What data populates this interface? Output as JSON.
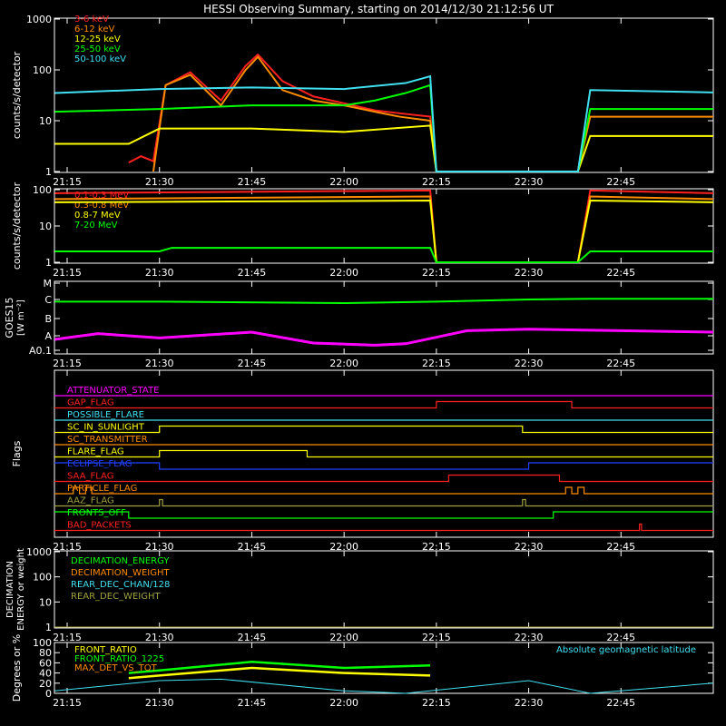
{
  "title": "HESSI Observing Summary, starting on 2014/12/30 21:12:56 UT",
  "time_ticks": [
    "21:15",
    "21:30",
    "21:45",
    "22:00",
    "22:15",
    "22:30",
    "22:45"
  ],
  "colors": {
    "red": "#ff2020",
    "orange": "#ff8c00",
    "yellow": "#ffff00",
    "green": "#00ff00",
    "cyan": "#40e0f0",
    "magenta": "#ff00ff",
    "blue": "#2040ff",
    "olive": "#a0a040"
  },
  "chart_data": [
    {
      "type": "line",
      "ylabel": "counts/s/detector",
      "yscale": "log",
      "ylim": [
        1,
        1000
      ],
      "yticks": [
        "1",
        "10",
        "100",
        "1000"
      ],
      "xlim": [
        "21:12:56",
        "23:00"
      ],
      "series": [
        {
          "name": "3-6 keV",
          "color": "red",
          "x": [
            "21:25",
            "21:27",
            "21:29",
            "21:31",
            "21:35",
            "21:40",
            "21:44",
            "21:46",
            "21:50",
            "21:55",
            "22:00",
            "22:05",
            "22:09",
            "22:14",
            "22:15"
          ],
          "y": [
            1.5,
            2,
            1.6,
            50,
            90,
            25,
            120,
            200,
            60,
            30,
            22,
            16,
            14,
            12,
            1
          ]
        },
        {
          "name": "6-12 keV",
          "color": "orange",
          "x": [
            "21:29",
            "21:31",
            "21:35",
            "21:40",
            "21:44",
            "21:46",
            "21:50",
            "21:55",
            "22:00",
            "22:05",
            "22:09",
            "22:14",
            "22:15",
            "22:38",
            "22:40",
            "23:00"
          ],
          "y": [
            1,
            50,
            80,
            20,
            100,
            180,
            40,
            25,
            20,
            15,
            12,
            10,
            1,
            1,
            12,
            12
          ]
        },
        {
          "name": "12-25 keV",
          "color": "yellow",
          "x": [
            "21:13",
            "21:25",
            "21:30",
            "21:45",
            "22:00",
            "22:14",
            "22:15",
            "22:38",
            "22:40",
            "23:00"
          ],
          "y": [
            3.5,
            3.5,
            7,
            7,
            6,
            8,
            1,
            1,
            5,
            5
          ]
        },
        {
          "name": "25-50 keV",
          "color": "green",
          "x": [
            "21:13",
            "21:30",
            "21:45",
            "22:00",
            "22:05",
            "22:10",
            "22:14",
            "22:15",
            "22:38",
            "22:40",
            "23:00"
          ],
          "y": [
            15,
            17,
            20,
            20,
            25,
            35,
            50,
            1,
            1,
            17,
            17
          ]
        },
        {
          "name": "50-100 keV",
          "color": "cyan",
          "x": [
            "21:13",
            "21:30",
            "21:45",
            "22:00",
            "22:10",
            "22:14",
            "22:15",
            "22:38",
            "22:40",
            "23:00"
          ],
          "y": [
            35,
            42,
            45,
            42,
            55,
            75,
            1,
            1,
            40,
            36
          ]
        }
      ]
    },
    {
      "type": "line",
      "ylabel": "counts/s/detector",
      "yscale": "log",
      "ylim": [
        1,
        100
      ],
      "yticks": [
        "1",
        "10",
        "100"
      ],
      "series": [
        {
          "name": "0.1-0.3 MeV",
          "color": "red",
          "x": [
            "21:13",
            "22:14",
            "22:15",
            "22:38",
            "22:40",
            "23:00"
          ],
          "y": [
            80,
            95,
            1,
            1,
            95,
            80
          ]
        },
        {
          "name": "0.3-0.8 MeV",
          "color": "orange",
          "x": [
            "21:13",
            "22:14",
            "22:15",
            "22:38",
            "22:40",
            "23:00"
          ],
          "y": [
            55,
            65,
            1,
            1,
            65,
            55
          ]
        },
        {
          "name": "0.8-7 MeV",
          "color": "yellow",
          "x": [
            "21:13",
            "22:14",
            "22:15",
            "22:38",
            "22:40",
            "23:00"
          ],
          "y": [
            45,
            50,
            1,
            1,
            50,
            45
          ]
        },
        {
          "name": "7-20 MeV",
          "color": "green",
          "x": [
            "21:13",
            "21:30",
            "21:32",
            "22:14",
            "22:15",
            "22:38",
            "22:40",
            "23:00"
          ],
          "y": [
            2,
            2,
            2.5,
            2.5,
            1,
            1,
            2,
            2
          ]
        }
      ]
    },
    {
      "type": "line",
      "ylabel": "GOES15 [W m^-2]",
      "yticks": [
        "A0.1",
        "A",
        "B",
        "C",
        "M"
      ],
      "series": [
        {
          "color": "green",
          "x": [
            "21:13",
            "21:30",
            "22:00",
            "22:15",
            "22:30",
            "22:40",
            "23:00"
          ],
          "y": [
            0.72,
            0.72,
            0.7,
            0.72,
            0.75,
            0.76,
            0.76
          ]
        },
        {
          "color": "magenta",
          "x": [
            "21:13",
            "21:20",
            "21:30",
            "21:45",
            "21:55",
            "22:05",
            "22:10",
            "22:20",
            "22:30",
            "22:45",
            "23:00"
          ],
          "y": [
            0.2,
            0.28,
            0.22,
            0.3,
            0.15,
            0.12,
            0.14,
            0.32,
            0.34,
            0.32,
            0.3
          ]
        }
      ]
    },
    {
      "type": "line",
      "ylabel": "Flags",
      "flags": [
        {
          "name": "ATTENUATOR_STATE",
          "color": "magenta"
        },
        {
          "name": "GAP_FLAG",
          "color": "red"
        },
        {
          "name": "POSSIBLE_FLARE",
          "color": "cyan"
        },
        {
          "name": "SC_IN_SUNLIGHT",
          "color": "yellow"
        },
        {
          "name": "SC_TRANSMITTER",
          "color": "orange"
        },
        {
          "name": "FLARE_FLAG",
          "color": "yellow"
        },
        {
          "name": "ECLIPSE_FLAG",
          "color": "blue"
        },
        {
          "name": "SAA_FLAG",
          "color": "red"
        },
        {
          "name": "PARTICLE_FLAG",
          "color": "orange"
        },
        {
          "name": "AAZ_FLAG",
          "color": "olive"
        },
        {
          "name": "FRONTS_OFF",
          "color": "green"
        },
        {
          "name": "BAD_PACKETS",
          "color": "red"
        }
      ]
    },
    {
      "type": "line",
      "ylabel": "DECIMATION ENERGY or weight",
      "yscale": "log",
      "yticks": [
        "1",
        "10",
        "100",
        "1000"
      ],
      "legend": [
        {
          "name": "DECIMATION_ENERGY",
          "color": "green"
        },
        {
          "name": "DECIMATION_WEIGHT",
          "color": "orange"
        },
        {
          "name": "REAR_DEC_CHAN/128",
          "color": "cyan"
        },
        {
          "name": "REAR_DEC_WEIGHT",
          "color": "olive"
        }
      ]
    },
    {
      "type": "line",
      "ylabel": "Degrees or %",
      "ylim": [
        0,
        100
      ],
      "yticks": [
        "0",
        "20",
        "40",
        "60",
        "80",
        "100"
      ],
      "annotation": "Absolute geomagnetic latitude",
      "series": [
        {
          "name": "FRONT_RATIO",
          "color": "yellow",
          "x": [
            "21:25",
            "21:30",
            "21:45",
            "22:00",
            "22:14"
          ],
          "y": [
            30,
            35,
            50,
            40,
            35
          ]
        },
        {
          "name": "FRONT_RATIO_1225",
          "color": "green",
          "x": [
            "21:25",
            "21:30",
            "21:45",
            "22:00",
            "22:14"
          ],
          "y": [
            40,
            45,
            62,
            50,
            55
          ]
        },
        {
          "name": "MAX_DET_VS_TOT",
          "color": "orange",
          "x": [],
          "y": []
        },
        {
          "color": "cyan",
          "x": [
            "21:13",
            "21:30",
            "21:40",
            "22:00",
            "22:10",
            "22:30",
            "22:40",
            "23:00"
          ],
          "y": [
            5,
            25,
            28,
            5,
            0,
            25,
            0,
            20
          ]
        }
      ]
    }
  ]
}
